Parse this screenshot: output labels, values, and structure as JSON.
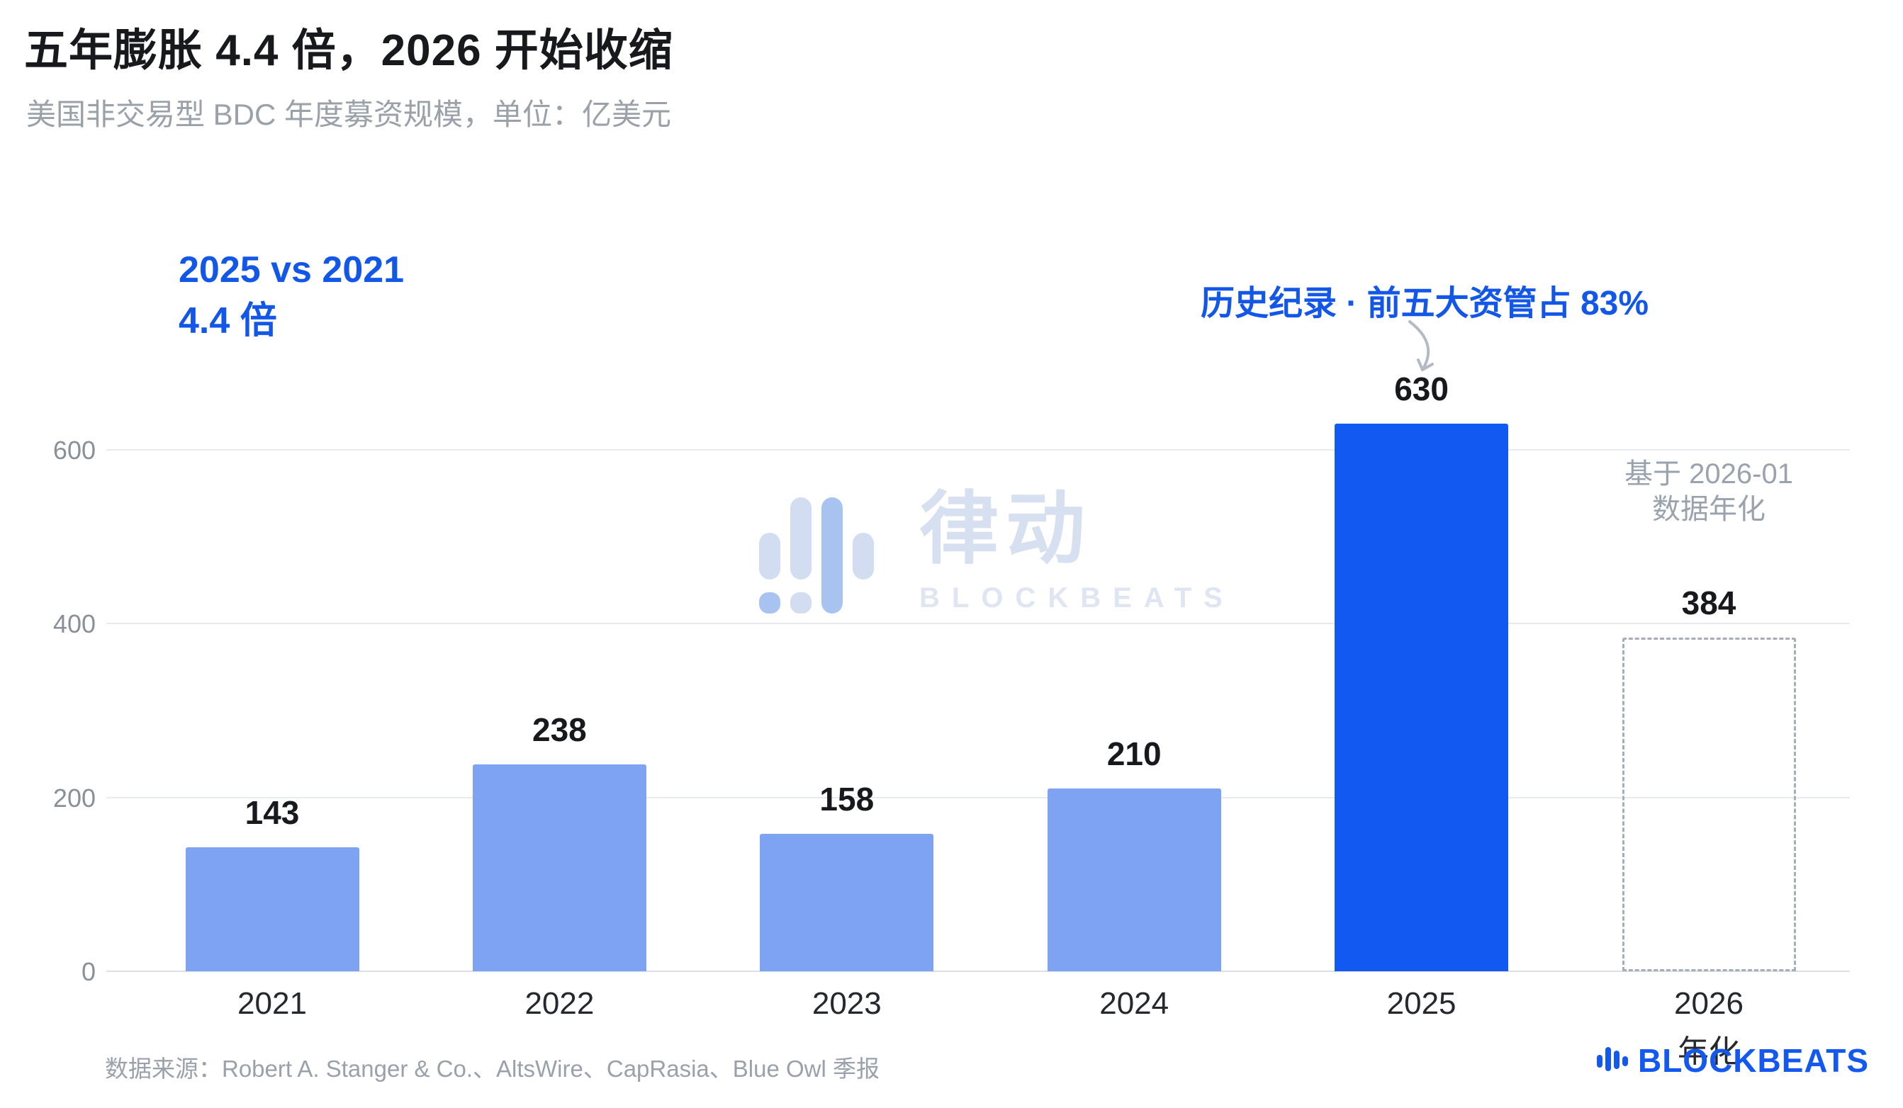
{
  "header": {
    "title": "五年膨胀 4.4 倍，2026 开始收缩",
    "subtitle": "美国非交易型 BDC 年度募资规模，单位：亿美元"
  },
  "annotations": {
    "comparison_line1": "2025 vs 2021",
    "comparison_line2": "4.4 倍",
    "record_note": "历史纪录 · 前五大资管占 83%",
    "annualized_note_line1": "基于 2026-01",
    "annualized_note_line2": "数据年化"
  },
  "chart_data": {
    "type": "bar",
    "title": "五年膨胀 4.4 倍，2026 开始收缩",
    "subtitle": "美国非交易型 BDC 年度募资规模",
    "unit": "亿美元",
    "categories": [
      "2021",
      "2022",
      "2023",
      "2024",
      "2025",
      "2026"
    ],
    "category_sublabels": [
      "",
      "",
      "",
      "",
      "",
      "年化"
    ],
    "values": [
      143,
      238,
      158,
      210,
      630,
      384
    ],
    "bar_styles": [
      "normal",
      "normal",
      "normal",
      "normal",
      "highlight",
      "dashed"
    ],
    "yticks": [
      0,
      200,
      400,
      600
    ],
    "ylim": [
      0,
      660
    ],
    "grid": true,
    "legend": false
  },
  "watermark": {
    "cn": "律动",
    "en": "BLOCKBEATS"
  },
  "footer": {
    "source": "数据来源：Robert A. Stanger & Co.、AltsWire、CapRasia、Blue Owl 季报",
    "logo_text": "BLOCKBEATS"
  },
  "colors": {
    "bar_light": "#7EA3F3",
    "bar_highlight": "#1159F0",
    "annotation_blue": "#1257E8",
    "dashed_border": "#A6AEB9",
    "grid": "#E7EAEE",
    "axis_text": "#8A9097",
    "value_text": "#17191C",
    "note_gray": "#9AA3AD",
    "watermark": "#D7E0F1",
    "logo_blue": "#1358F0"
  }
}
